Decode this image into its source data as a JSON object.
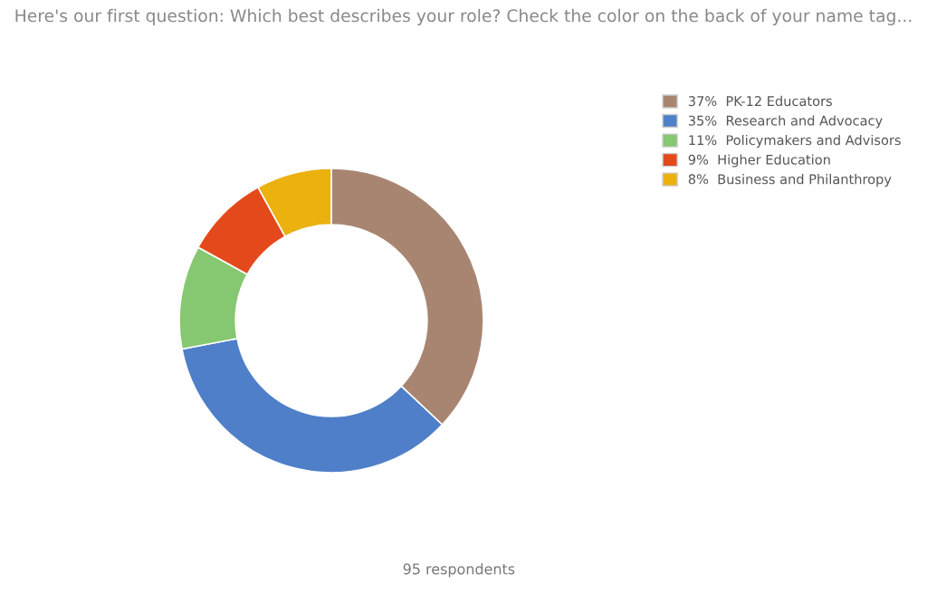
{
  "chart_data": {
    "type": "donut",
    "title": "Here's our first question: Which best describes your role? Check the color on the back of your name tag...",
    "categories": [
      "PK-12 Educators",
      "Research and Advocacy",
      "Policymakers and Advisors",
      "Higher Education",
      "Business and Philanthropy"
    ],
    "values": [
      37,
      35,
      11,
      9,
      8
    ],
    "value_labels": [
      "37%",
      "35%",
      "11%",
      "9%",
      "8%"
    ],
    "colors": [
      "#a88571",
      "#4f7fc8",
      "#86c772",
      "#e4491b",
      "#ebb10f"
    ],
    "legend": "top right",
    "annotations": [
      "95 respondents"
    ]
  }
}
